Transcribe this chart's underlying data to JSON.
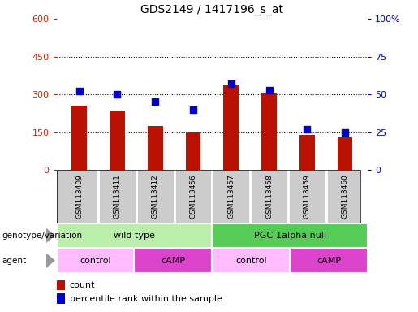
{
  "title": "GDS2149 / 1417196_s_at",
  "samples": [
    "GSM113409",
    "GSM113411",
    "GSM113412",
    "GSM113456",
    "GSM113457",
    "GSM113458",
    "GSM113459",
    "GSM113460"
  ],
  "counts": [
    255,
    235,
    175,
    148,
    340,
    305,
    140,
    130
  ],
  "percentile_ranks": [
    52,
    50,
    45,
    40,
    57,
    53,
    27,
    25
  ],
  "left_ylim": [
    0,
    600
  ],
  "left_yticks": [
    0,
    150,
    300,
    450,
    600
  ],
  "right_ylim": [
    0,
    100
  ],
  "right_yticks": [
    0,
    25,
    50,
    75,
    100
  ],
  "right_yticklabels": [
    "0",
    "25",
    "50",
    "75",
    "100%"
  ],
  "bar_color": "#bb1100",
  "marker_color": "#0000cc",
  "genotype_groups": [
    {
      "label": "wild type",
      "start": 0,
      "end": 4,
      "color": "#bbeeaa"
    },
    {
      "label": "PGC-1alpha null",
      "start": 4,
      "end": 8,
      "color": "#55cc55"
    }
  ],
  "agent_groups": [
    {
      "label": "control",
      "start": 0,
      "end": 2,
      "color": "#ffbbff"
    },
    {
      "label": "cAMP",
      "start": 2,
      "end": 4,
      "color": "#dd44cc"
    },
    {
      "label": "control",
      "start": 4,
      "end": 6,
      "color": "#ffbbff"
    },
    {
      "label": "cAMP",
      "start": 6,
      "end": 8,
      "color": "#dd44cc"
    }
  ],
  "left_tick_color": "#cc2200",
  "right_tick_color": "#0000cc",
  "grid_color": "#000000",
  "background_color": "#ffffff",
  "bar_width": 0.4,
  "marker_size": 35
}
